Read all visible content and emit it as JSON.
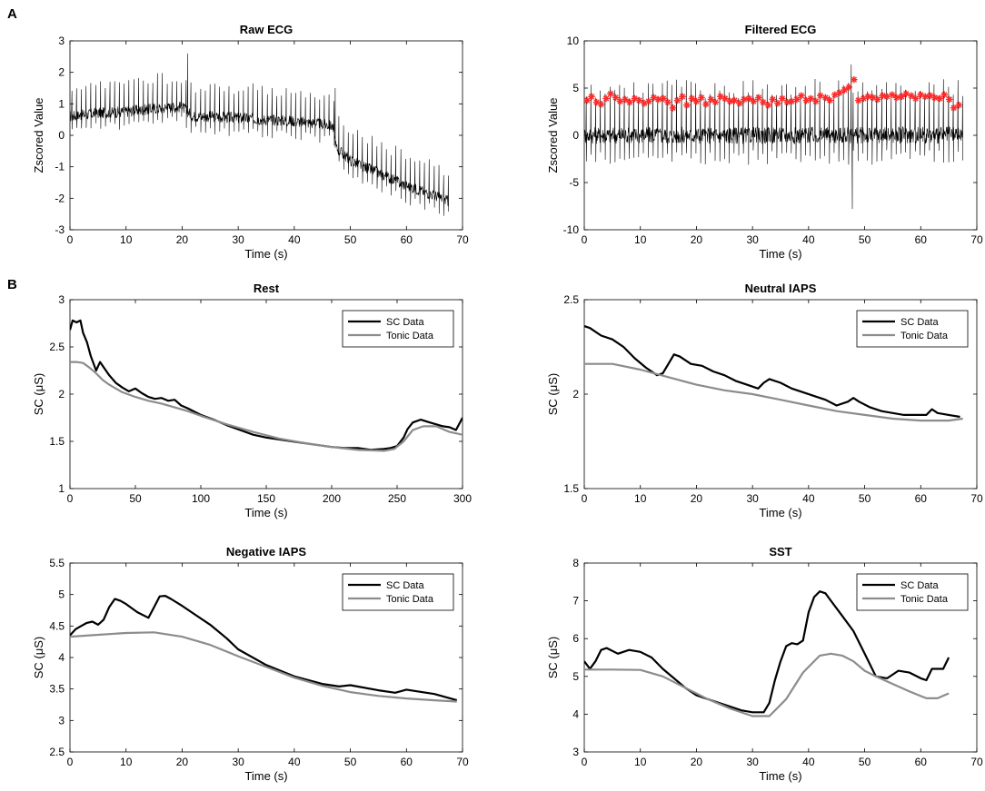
{
  "figure": {
    "panel_labels": [
      "A",
      "B"
    ]
  },
  "chart_data": [
    {
      "id": "raw_ecg",
      "type": "line",
      "title": "Raw ECG",
      "xlabel": "Time (s)",
      "ylabel": "Zscored Value",
      "xlim": [
        0,
        70
      ],
      "ylim": [
        -3,
        3
      ],
      "xticks": [
        0,
        10,
        20,
        30,
        40,
        50,
        60,
        70
      ],
      "yticks": [
        -3,
        -2,
        -1,
        0,
        1,
        2,
        3
      ],
      "color": "#000000",
      "series": [
        {
          "name": "Raw ECG",
          "baseline": {
            "x": [
              0,
              5,
              10,
              15,
              20,
              22,
              25,
              30,
              35,
              40,
              45,
              46.8,
              47.5,
              50,
              55,
              60,
              65,
              67.5
            ],
            "y": [
              0.6,
              0.7,
              0.75,
              0.85,
              0.9,
              0.6,
              0.6,
              0.55,
              0.5,
              0.45,
              0.35,
              0.3,
              -0.4,
              -0.8,
              -1.2,
              -1.6,
              -1.9,
              -2.1
            ]
          },
          "spike_interval_s": 0.85,
          "spike_up": 1.0,
          "spike_down": 0.5,
          "noise": 0.18,
          "events": [
            {
              "x": 47.3,
              "y": 1.5
            },
            {
              "x": 21,
              "y": 2.6
            }
          ]
        }
      ]
    },
    {
      "id": "filtered_ecg",
      "type": "line",
      "title": "Filtered ECG",
      "xlabel": "Time (s)",
      "ylabel": "Zscored Value",
      "xlim": [
        0,
        70
      ],
      "ylim": [
        -10,
        10
      ],
      "xticks": [
        0,
        10,
        20,
        30,
        40,
        50,
        60,
        70
      ],
      "yticks": [
        -10,
        -5,
        0,
        5,
        10
      ],
      "color": "#000000",
      "series": [
        {
          "name": "Filtered ECG",
          "baseline": {
            "x": [
              0,
              67.5
            ],
            "y": [
              0,
              0
            ]
          },
          "spike_interval_s": 0.85,
          "spike_up": 5.2,
          "spike_down": 2.6,
          "noise": 0.9,
          "events": [
            {
              "x": 47.8,
              "y": -7.8
            },
            {
              "x": 47.6,
              "y": 7.5
            }
          ]
        },
        {
          "name": "R peaks",
          "marker": "*",
          "color": "#ff2a2a",
          "x": [
            0.5,
            1.3,
            2.2,
            3.0,
            3.9,
            4.7,
            5.6,
            6.4,
            7.3,
            8.1,
            9.0,
            9.8,
            10.7,
            11.5,
            12.4,
            13.2,
            14.1,
            14.9,
            15.8,
            16.6,
            17.5,
            18.3,
            19.2,
            20.0,
            20.9,
            21.7,
            22.6,
            23.4,
            24.3,
            25.1,
            26.0,
            26.8,
            27.7,
            28.5,
            29.4,
            30.2,
            31.1,
            31.9,
            32.8,
            33.6,
            34.5,
            35.3,
            36.2,
            37.0,
            37.9,
            38.7,
            39.6,
            40.4,
            41.3,
            42.1,
            43.0,
            43.8,
            44.7,
            45.5,
            46.4,
            47.2,
            48.1,
            48.9,
            49.8,
            50.6,
            51.5,
            52.3,
            53.2,
            54.0,
            54.9,
            55.7,
            56.6,
            57.4,
            58.3,
            59.1,
            60.0,
            60.8,
            61.7,
            62.5,
            63.4,
            64.2,
            65.1,
            65.9,
            66.8
          ],
          "y": [
            3.7,
            4.1,
            3.5,
            3.3,
            3.9,
            4.4,
            4.0,
            3.6,
            3.8,
            3.5,
            3.9,
            3.7,
            3.4,
            3.6,
            4.0,
            3.8,
            3.9,
            3.5,
            2.9,
            3.7,
            4.1,
            3.2,
            3.9,
            3.6,
            4.0,
            3.3,
            3.8,
            3.5,
            4.1,
            3.9,
            3.6,
            3.7,
            3.4,
            3.8,
            3.9,
            3.6,
            4.0,
            3.5,
            3.2,
            3.8,
            3.4,
            3.9,
            3.5,
            3.6,
            3.8,
            4.2,
            3.7,
            3.9,
            3.6,
            4.2,
            4.0,
            3.7,
            4.3,
            4.5,
            4.8,
            5.1,
            5.9,
            3.7,
            3.9,
            4.1,
            4.0,
            3.8,
            4.2,
            4.1,
            4.3,
            4.0,
            4.1,
            4.4,
            4.2,
            3.9,
            4.3,
            4.1,
            4.2,
            4.0,
            3.9,
            4.3,
            3.8,
            2.9,
            3.2
          ]
        }
      ]
    },
    {
      "id": "rest",
      "type": "line",
      "title": "Rest",
      "xlabel": "Time (s)",
      "ylabel": "SC (μS)",
      "xlim": [
        0,
        300
      ],
      "ylim": [
        1,
        3
      ],
      "xticks": [
        0,
        50,
        100,
        150,
        200,
        250,
        300
      ],
      "yticks": [
        1,
        1.5,
        2,
        2.5,
        3
      ],
      "legend": "top-right",
      "series": [
        {
          "name": "SC Data",
          "color": "#000000",
          "width": 2.2,
          "x": [
            0,
            2,
            5,
            8,
            10,
            13,
            16,
            20,
            23,
            26,
            30,
            35,
            40,
            45,
            50,
            55,
            60,
            65,
            70,
            75,
            80,
            85,
            90,
            100,
            110,
            120,
            130,
            140,
            150,
            160,
            170,
            180,
            190,
            200,
            210,
            220,
            230,
            240,
            245,
            250,
            255,
            258,
            262,
            268,
            275,
            280,
            285,
            290,
            295,
            300
          ],
          "y": [
            2.68,
            2.78,
            2.76,
            2.78,
            2.65,
            2.55,
            2.4,
            2.25,
            2.34,
            2.28,
            2.2,
            2.12,
            2.07,
            2.03,
            2.06,
            2.01,
            1.97,
            1.95,
            1.96,
            1.93,
            1.94,
            1.88,
            1.85,
            1.78,
            1.73,
            1.67,
            1.62,
            1.57,
            1.54,
            1.52,
            1.5,
            1.48,
            1.46,
            1.44,
            1.43,
            1.43,
            1.41,
            1.42,
            1.43,
            1.45,
            1.54,
            1.63,
            1.7,
            1.73,
            1.7,
            1.68,
            1.66,
            1.65,
            1.62,
            1.75
          ]
        },
        {
          "name": "Tonic Data",
          "color": "#8c8c8c",
          "width": 2.2,
          "x": [
            0,
            5,
            10,
            15,
            20,
            25,
            30,
            40,
            50,
            60,
            70,
            80,
            90,
            100,
            120,
            140,
            160,
            180,
            200,
            220,
            240,
            248,
            255,
            262,
            270,
            280,
            290,
            300
          ],
          "y": [
            2.34,
            2.34,
            2.33,
            2.28,
            2.22,
            2.15,
            2.1,
            2.02,
            1.97,
            1.93,
            1.9,
            1.86,
            1.82,
            1.77,
            1.68,
            1.6,
            1.53,
            1.48,
            1.44,
            1.41,
            1.4,
            1.42,
            1.5,
            1.62,
            1.66,
            1.66,
            1.6,
            1.57
          ]
        }
      ]
    },
    {
      "id": "neutral_iaps",
      "type": "line",
      "title": "Neutral IAPS",
      "xlabel": "Time (s)",
      "ylabel": "SC (μS)",
      "xlim": [
        0,
        70
      ],
      "ylim": [
        1.5,
        2.5
      ],
      "xticks": [
        0,
        10,
        20,
        30,
        40,
        50,
        60,
        70
      ],
      "yticks": [
        1.5,
        2,
        2.5
      ],
      "legend": "top-right",
      "series": [
        {
          "name": "SC Data",
          "color": "#000000",
          "width": 2.2,
          "x": [
            0,
            1,
            3,
            5,
            7,
            9,
            11,
            13,
            14,
            15,
            16,
            17,
            19,
            21,
            23,
            25,
            27,
            29,
            31,
            32,
            33,
            35,
            37,
            39,
            41,
            43,
            45,
            47,
            48,
            49,
            51,
            53,
            55,
            57,
            59,
            61,
            62,
            63,
            65,
            67
          ],
          "y": [
            2.36,
            2.35,
            2.31,
            2.29,
            2.25,
            2.19,
            2.14,
            2.1,
            2.11,
            2.16,
            2.21,
            2.2,
            2.16,
            2.15,
            2.12,
            2.1,
            2.07,
            2.05,
            2.03,
            2.06,
            2.08,
            2.06,
            2.03,
            2.01,
            1.99,
            1.97,
            1.94,
            1.96,
            1.98,
            1.96,
            1.93,
            1.91,
            1.9,
            1.89,
            1.89,
            1.89,
            1.92,
            1.9,
            1.89,
            1.88
          ]
        },
        {
          "name": "Tonic Data",
          "color": "#8c8c8c",
          "width": 2.2,
          "x": [
            0,
            5,
            10,
            15,
            20,
            25,
            30,
            35,
            40,
            45,
            50,
            55,
            60,
            65,
            67.5
          ],
          "y": [
            2.16,
            2.16,
            2.13,
            2.09,
            2.05,
            2.02,
            2.0,
            1.97,
            1.94,
            1.91,
            1.89,
            1.87,
            1.86,
            1.86,
            1.87
          ]
        }
      ]
    },
    {
      "id": "negative_iaps",
      "type": "line",
      "title": "Negative IAPS",
      "xlabel": "Time (s)",
      "ylabel": "SC (μS)",
      "xlim": [
        0,
        70
      ],
      "ylim": [
        2.5,
        5.5
      ],
      "xticks": [
        0,
        10,
        20,
        30,
        40,
        50,
        60,
        70
      ],
      "yticks": [
        2.5,
        3,
        3.5,
        4,
        4.5,
        5,
        5.5
      ],
      "legend": "top-right",
      "series": [
        {
          "name": "SC Data",
          "color": "#000000",
          "width": 2.2,
          "x": [
            0,
            1,
            2,
            3,
            4,
            5,
            6,
            7,
            8,
            9,
            10,
            12,
            14,
            15,
            16,
            17,
            18,
            20,
            22,
            25,
            28,
            30,
            35,
            40,
            45,
            48,
            50,
            55,
            58,
            60,
            65,
            69
          ],
          "y": [
            4.35,
            4.45,
            4.5,
            4.55,
            4.57,
            4.52,
            4.6,
            4.8,
            4.93,
            4.9,
            4.85,
            4.72,
            4.63,
            4.8,
            4.97,
            4.98,
            4.93,
            4.82,
            4.7,
            4.52,
            4.3,
            4.13,
            3.88,
            3.7,
            3.58,
            3.54,
            3.56,
            3.48,
            3.44,
            3.49,
            3.42,
            3.32
          ]
        },
        {
          "name": "Tonic Data",
          "color": "#8c8c8c",
          "width": 2.2,
          "x": [
            0,
            5,
            10,
            15,
            20,
            25,
            30,
            35,
            40,
            45,
            50,
            55,
            60,
            65,
            69
          ],
          "y": [
            4.33,
            4.36,
            4.39,
            4.4,
            4.33,
            4.2,
            4.02,
            3.85,
            3.68,
            3.55,
            3.45,
            3.39,
            3.35,
            3.32,
            3.3
          ]
        }
      ]
    },
    {
      "id": "sst",
      "type": "line",
      "title": "SST",
      "xlabel": "Time (s)",
      "ylabel": "SC (μS)",
      "xlim": [
        0,
        70
      ],
      "ylim": [
        3,
        8
      ],
      "xticks": [
        0,
        10,
        20,
        30,
        40,
        50,
        60,
        70
      ],
      "yticks": [
        3,
        4,
        5,
        6,
        7,
        8
      ],
      "legend": "top-right",
      "series": [
        {
          "name": "SC Data",
          "color": "#000000",
          "width": 2.2,
          "x": [
            0,
            1,
            2,
            3,
            4,
            6,
            8,
            10,
            12,
            14,
            16,
            18,
            20,
            22,
            24,
            26,
            28,
            30,
            32,
            33,
            34,
            35,
            36,
            37,
            38,
            39,
            40,
            41,
            42,
            43,
            44,
            46,
            48,
            50,
            52,
            54,
            56,
            58,
            60,
            61,
            62,
            63,
            64,
            65
          ],
          "y": [
            5.4,
            5.2,
            5.4,
            5.7,
            5.75,
            5.6,
            5.7,
            5.65,
            5.5,
            5.2,
            4.95,
            4.7,
            4.5,
            4.4,
            4.3,
            4.2,
            4.1,
            4.05,
            4.05,
            4.3,
            4.9,
            5.4,
            5.8,
            5.88,
            5.85,
            5.95,
            6.7,
            7.1,
            7.25,
            7.2,
            7.0,
            6.6,
            6.2,
            5.6,
            5.0,
            4.95,
            5.15,
            5.1,
            4.95,
            4.9,
            5.2,
            5.2,
            5.2,
            5.5
          ]
        },
        {
          "name": "Tonic Data",
          "color": "#8c8c8c",
          "width": 2.2,
          "x": [
            0,
            5,
            10,
            14,
            18,
            22,
            26,
            30,
            33,
            36,
            39,
            42,
            44,
            46,
            48,
            50,
            52,
            55,
            58,
            61,
            63,
            65
          ],
          "y": [
            5.18,
            5.18,
            5.17,
            5.0,
            4.7,
            4.4,
            4.15,
            3.95,
            3.95,
            4.4,
            5.1,
            5.55,
            5.6,
            5.55,
            5.4,
            5.15,
            5.0,
            4.8,
            4.6,
            4.42,
            4.42,
            4.55
          ]
        }
      ]
    }
  ]
}
